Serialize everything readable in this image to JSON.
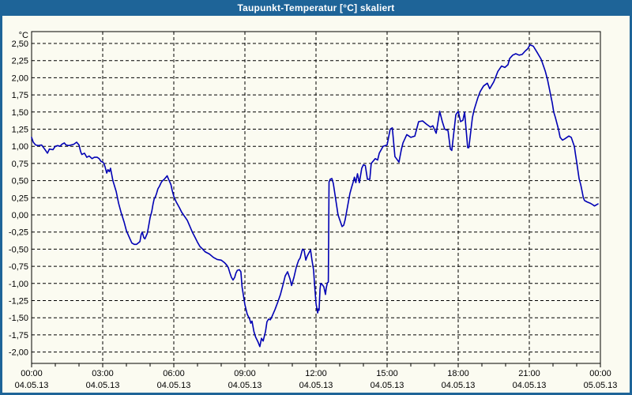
{
  "title": "Taupunkt-Temperatur [°C] skaliert",
  "colors": {
    "frame_blue": "#1E6498",
    "background": "#FBFBF1",
    "line_blue": "#0000B4",
    "grid_black": "#000000",
    "title_text": "#FFFFFF"
  },
  "chart_data": {
    "type": "line",
    "title": "Taupunkt-Temperatur [°C] skaliert",
    "grid": "dashed",
    "legend": "none",
    "y_axis": {
      "unit": "°C",
      "ylim": [
        -2.0,
        2.5
      ],
      "tick_step": 0.25,
      "ticks": [
        {
          "v": 2.5,
          "label": "2,50"
        },
        {
          "v": 2.25,
          "label": "2,25"
        },
        {
          "v": 2.0,
          "label": "2,00"
        },
        {
          "v": 1.75,
          "label": "1,75"
        },
        {
          "v": 1.5,
          "label": "1,50"
        },
        {
          "v": 1.25,
          "label": "1,25"
        },
        {
          "v": 1.0,
          "label": "1,00"
        },
        {
          "v": 0.75,
          "label": "0,75"
        },
        {
          "v": 0.5,
          "label": "0,50"
        },
        {
          "v": 0.25,
          "label": "0,25"
        },
        {
          "v": 0.0,
          "label": "0,00"
        },
        {
          "v": -0.25,
          "label": "-0,25"
        },
        {
          "v": -0.5,
          "label": "-0,50"
        },
        {
          "v": -0.75,
          "label": "-0,75"
        },
        {
          "v": -1.0,
          "label": "-1,00"
        },
        {
          "v": -1.25,
          "label": "-1,25"
        },
        {
          "v": -1.5,
          "label": "-1,50"
        },
        {
          "v": -1.75,
          "label": "-1,75"
        },
        {
          "v": -2.0,
          "label": "-2,00"
        }
      ]
    },
    "x_axis": {
      "xlim_hours": [
        0,
        24
      ],
      "minor_tick_every_hours": 1,
      "grid_hours": [
        3,
        6,
        9,
        12,
        15,
        18,
        21
      ],
      "ticks": [
        {
          "h": 0,
          "time": "00:00",
          "date": "04.05.13"
        },
        {
          "h": 3,
          "time": "03:00",
          "date": "04.05.13"
        },
        {
          "h": 6,
          "time": "06:00",
          "date": "04.05.13"
        },
        {
          "h": 9,
          "time": "09:00",
          "date": "04.05.13"
        },
        {
          "h": 12,
          "time": "12:00",
          "date": "04.05.13"
        },
        {
          "h": 15,
          "time": "15:00",
          "date": "04.05.13"
        },
        {
          "h": 18,
          "time": "18:00",
          "date": "04.05.13"
        },
        {
          "h": 21,
          "time": "21:00",
          "date": "04.05.13"
        },
        {
          "h": 24,
          "time": "00:00",
          "date": "05.05.13"
        }
      ]
    },
    "series": [
      {
        "name": "Taupunkt-Temperatur",
        "color": "#0000B4",
        "points": [
          [
            0.0,
            1.13
          ],
          [
            0.07,
            1.06
          ],
          [
            0.17,
            1.02
          ],
          [
            0.28,
            1.01
          ],
          [
            0.42,
            1.02
          ],
          [
            0.55,
            0.96
          ],
          [
            0.67,
            0.9
          ],
          [
            0.75,
            0.96
          ],
          [
            0.9,
            0.95
          ],
          [
            1.0,
            1.0
          ],
          [
            1.1,
            1.01
          ],
          [
            1.2,
            1.0
          ],
          [
            1.28,
            1.03
          ],
          [
            1.38,
            1.05
          ],
          [
            1.45,
            1.02
          ],
          [
            1.57,
            1.01
          ],
          [
            1.67,
            1.02
          ],
          [
            1.78,
            1.03
          ],
          [
            1.9,
            1.06
          ],
          [
            2.0,
            1.02
          ],
          [
            2.07,
            0.92
          ],
          [
            2.12,
            0.88
          ],
          [
            2.23,
            0.9
          ],
          [
            2.33,
            0.84
          ],
          [
            2.43,
            0.86
          ],
          [
            2.55,
            0.82
          ],
          [
            2.65,
            0.84
          ],
          [
            2.77,
            0.84
          ],
          [
            2.85,
            0.82
          ],
          [
            2.93,
            0.78
          ],
          [
            3.0,
            0.77
          ],
          [
            3.05,
            0.75
          ],
          [
            3.1,
            0.7
          ],
          [
            3.17,
            0.61
          ],
          [
            3.22,
            0.66
          ],
          [
            3.28,
            0.63
          ],
          [
            3.33,
            0.68
          ],
          [
            3.43,
            0.5
          ],
          [
            3.57,
            0.34
          ],
          [
            3.67,
            0.17
          ],
          [
            3.78,
            0.03
          ],
          [
            3.9,
            -0.1
          ],
          [
            4.0,
            -0.23
          ],
          [
            4.1,
            -0.31
          ],
          [
            4.23,
            -0.41
          ],
          [
            4.33,
            -0.43
          ],
          [
            4.43,
            -0.43
          ],
          [
            4.57,
            -0.39
          ],
          [
            4.62,
            -0.29
          ],
          [
            4.67,
            -0.25
          ],
          [
            4.73,
            -0.33
          ],
          [
            4.78,
            -0.35
          ],
          [
            4.88,
            -0.27
          ],
          [
            4.93,
            -0.18
          ],
          [
            5.0,
            -0.04
          ],
          [
            5.07,
            0.05
          ],
          [
            5.12,
            0.15
          ],
          [
            5.17,
            0.23
          ],
          [
            5.23,
            0.27
          ],
          [
            5.28,
            0.32
          ],
          [
            5.33,
            0.38
          ],
          [
            5.4,
            0.42
          ],
          [
            5.45,
            0.46
          ],
          [
            5.5,
            0.49
          ],
          [
            5.6,
            0.52
          ],
          [
            5.72,
            0.57
          ],
          [
            5.78,
            0.52
          ],
          [
            5.83,
            0.48
          ],
          [
            5.88,
            0.44
          ],
          [
            5.93,
            0.36
          ],
          [
            6.0,
            0.27
          ],
          [
            6.1,
            0.19
          ],
          [
            6.23,
            0.11
          ],
          [
            6.33,
            0.04
          ],
          [
            6.45,
            -0.02
          ],
          [
            6.57,
            -0.08
          ],
          [
            6.67,
            -0.16
          ],
          [
            6.78,
            -0.25
          ],
          [
            6.9,
            -0.33
          ],
          [
            7.0,
            -0.4
          ],
          [
            7.1,
            -0.46
          ],
          [
            7.22,
            -0.5
          ],
          [
            7.33,
            -0.54
          ],
          [
            7.5,
            -0.57
          ],
          [
            7.67,
            -0.62
          ],
          [
            7.83,
            -0.65
          ],
          [
            8.0,
            -0.66
          ],
          [
            8.15,
            -0.7
          ],
          [
            8.23,
            -0.73
          ],
          [
            8.3,
            -0.77
          ],
          [
            8.37,
            -0.85
          ],
          [
            8.43,
            -0.91
          ],
          [
            8.5,
            -0.95
          ],
          [
            8.57,
            -0.91
          ],
          [
            8.62,
            -0.85
          ],
          [
            8.68,
            -0.81
          ],
          [
            8.77,
            -0.8
          ],
          [
            8.83,
            -0.83
          ],
          [
            8.88,
            -1.05
          ],
          [
            9.0,
            -1.31
          ],
          [
            9.1,
            -1.45
          ],
          [
            9.2,
            -1.52
          ],
          [
            9.25,
            -1.58
          ],
          [
            9.3,
            -1.55
          ],
          [
            9.38,
            -1.7
          ],
          [
            9.45,
            -1.78
          ],
          [
            9.55,
            -1.85
          ],
          [
            9.63,
            -1.92
          ],
          [
            9.7,
            -1.8
          ],
          [
            9.77,
            -1.84
          ],
          [
            9.87,
            -1.7
          ],
          [
            9.93,
            -1.56
          ],
          [
            10.0,
            -1.52
          ],
          [
            10.07,
            -1.53
          ],
          [
            10.12,
            -1.5
          ],
          [
            10.27,
            -1.38
          ],
          [
            10.4,
            -1.26
          ],
          [
            10.5,
            -1.16
          ],
          [
            10.6,
            -1.03
          ],
          [
            10.7,
            -0.89
          ],
          [
            10.8,
            -0.83
          ],
          [
            10.9,
            -0.93
          ],
          [
            10.97,
            -1.03
          ],
          [
            11.07,
            -0.91
          ],
          [
            11.17,
            -0.76
          ],
          [
            11.27,
            -0.66
          ],
          [
            11.33,
            -0.63
          ],
          [
            11.43,
            -0.5
          ],
          [
            11.5,
            -0.52
          ],
          [
            11.57,
            -0.66
          ],
          [
            11.63,
            -0.6
          ],
          [
            11.77,
            -0.51
          ],
          [
            11.83,
            -0.66
          ],
          [
            11.9,
            -0.81
          ],
          [
            11.93,
            -0.97
          ],
          [
            12.0,
            -1.29
          ],
          [
            12.07,
            -1.43
          ],
          [
            12.1,
            -1.37
          ],
          [
            12.13,
            -1.39
          ],
          [
            12.17,
            -1.08
          ],
          [
            12.2,
            -1.0
          ],
          [
            12.27,
            -1.02
          ],
          [
            12.33,
            -1.05
          ],
          [
            12.4,
            -1.16
          ],
          [
            12.43,
            -1.07
          ],
          [
            12.48,
            -0.99
          ],
          [
            12.52,
            -0.98
          ],
          [
            12.55,
            0.48
          ],
          [
            12.6,
            0.52
          ],
          [
            12.67,
            0.53
          ],
          [
            12.73,
            0.46
          ],
          [
            12.83,
            0.23
          ],
          [
            12.93,
            0.0
          ],
          [
            13.0,
            -0.07
          ],
          [
            13.1,
            -0.17
          ],
          [
            13.17,
            -0.15
          ],
          [
            13.23,
            -0.07
          ],
          [
            13.33,
            0.12
          ],
          [
            13.43,
            0.31
          ],
          [
            13.5,
            0.4
          ],
          [
            13.57,
            0.48
          ],
          [
            13.62,
            0.55
          ],
          [
            13.68,
            0.47
          ],
          [
            13.75,
            0.6
          ],
          [
            13.83,
            0.47
          ],
          [
            13.93,
            0.68
          ],
          [
            14.0,
            0.73
          ],
          [
            14.08,
            0.72
          ],
          [
            14.17,
            0.52
          ],
          [
            14.27,
            0.52
          ],
          [
            14.33,
            0.75
          ],
          [
            14.5,
            0.82
          ],
          [
            14.6,
            0.8
          ],
          [
            14.67,
            0.9
          ],
          [
            14.83,
            1.0
          ],
          [
            15.0,
            1.02
          ],
          [
            15.13,
            1.25
          ],
          [
            15.22,
            1.27
          ],
          [
            15.33,
            0.85
          ],
          [
            15.5,
            0.77
          ],
          [
            15.6,
            0.95
          ],
          [
            15.67,
            1.05
          ],
          [
            15.83,
            1.17
          ],
          [
            15.92,
            1.15
          ],
          [
            16.0,
            1.13
          ],
          [
            16.17,
            1.15
          ],
          [
            16.33,
            1.36
          ],
          [
            16.5,
            1.37
          ],
          [
            16.67,
            1.32
          ],
          [
            16.83,
            1.28
          ],
          [
            16.93,
            1.3
          ],
          [
            17.07,
            1.19
          ],
          [
            17.22,
            1.51
          ],
          [
            17.33,
            1.36
          ],
          [
            17.43,
            1.25
          ],
          [
            17.57,
            1.23
          ],
          [
            17.67,
            0.96
          ],
          [
            17.73,
            0.94
          ],
          [
            17.9,
            1.46
          ],
          [
            18.0,
            1.51
          ],
          [
            18.1,
            1.36
          ],
          [
            18.2,
            1.38
          ],
          [
            18.27,
            1.5
          ],
          [
            18.4,
            0.98
          ],
          [
            18.45,
            0.98
          ],
          [
            18.6,
            1.42
          ],
          [
            18.67,
            1.53
          ],
          [
            18.83,
            1.71
          ],
          [
            18.93,
            1.8
          ],
          [
            19.07,
            1.88
          ],
          [
            19.23,
            1.92
          ],
          [
            19.33,
            1.84
          ],
          [
            19.5,
            1.94
          ],
          [
            19.57,
            2.0
          ],
          [
            19.67,
            2.09
          ],
          [
            19.83,
            2.17
          ],
          [
            19.97,
            2.15
          ],
          [
            20.1,
            2.19
          ],
          [
            20.17,
            2.28
          ],
          [
            20.3,
            2.33
          ],
          [
            20.43,
            2.35
          ],
          [
            20.57,
            2.33
          ],
          [
            20.7,
            2.34
          ],
          [
            20.83,
            2.39
          ],
          [
            20.93,
            2.42
          ],
          [
            21.03,
            2.48
          ],
          [
            21.17,
            2.46
          ],
          [
            21.33,
            2.37
          ],
          [
            21.5,
            2.27
          ],
          [
            21.67,
            2.1
          ],
          [
            21.77,
            1.97
          ],
          [
            21.87,
            1.8
          ],
          [
            21.97,
            1.63
          ],
          [
            22.03,
            1.5
          ],
          [
            22.1,
            1.42
          ],
          [
            22.23,
            1.25
          ],
          [
            22.3,
            1.13
          ],
          [
            22.4,
            1.09
          ],
          [
            22.5,
            1.11
          ],
          [
            22.67,
            1.15
          ],
          [
            22.77,
            1.13
          ],
          [
            22.9,
            1.0
          ],
          [
            22.95,
            0.88
          ],
          [
            23.0,
            0.77
          ],
          [
            23.05,
            0.65
          ],
          [
            23.1,
            0.53
          ],
          [
            23.17,
            0.44
          ],
          [
            23.23,
            0.34
          ],
          [
            23.28,
            0.25
          ],
          [
            23.33,
            0.21
          ],
          [
            23.43,
            0.19
          ],
          [
            23.57,
            0.17
          ],
          [
            23.67,
            0.15
          ],
          [
            23.75,
            0.13
          ],
          [
            23.85,
            0.15
          ],
          [
            23.9,
            0.16
          ]
        ]
      }
    ]
  }
}
